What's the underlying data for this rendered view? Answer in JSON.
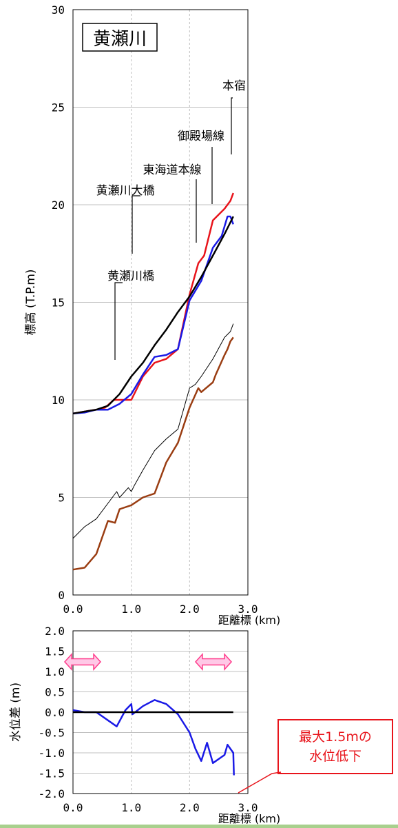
{
  "colors": {
    "red": "#e8141b",
    "blue": "#1a1ae6",
    "black": "#000000",
    "brown": "#9a3d12",
    "grid": "#c0c0c0",
    "callout": "#e8141b",
    "arrow_fill": "#ffc8e6",
    "arrow_stroke": "#ff3d8c",
    "bottom_strip": "#a8d08d"
  },
  "chart_data": [
    {
      "type": "line",
      "title": "黄瀬川",
      "ylabel": "標高 (T.P.m)",
      "xlabel": "距離標 (km)",
      "xlim": [
        0,
        3
      ],
      "ylim": [
        0,
        30
      ],
      "xticks": [
        "0.0",
        "1.0",
        "2.0",
        "3.0"
      ],
      "yticks": [
        "0",
        "5",
        "10",
        "15",
        "20",
        "25",
        "30"
      ],
      "grid": true,
      "series": [
        {
          "color": "red",
          "x": [
            0,
            0.2,
            0.4,
            0.55,
            0.7,
            0.8,
            1.0,
            1.2,
            1.4,
            1.6,
            1.8,
            2.0,
            2.15,
            2.25,
            2.4,
            2.6,
            2.65,
            2.7,
            2.75
          ],
          "y": [
            9.3,
            9.4,
            9.5,
            9.6,
            10.0,
            10.0,
            10.0,
            11.2,
            11.9,
            12.1,
            12.6,
            15.4,
            17.0,
            17.4,
            19.2,
            19.8,
            20.0,
            20.2,
            20.6
          ]
        },
        {
          "color": "blue",
          "x": [
            0,
            0.2,
            0.4,
            0.6,
            0.8,
            1.0,
            1.2,
            1.4,
            1.6,
            1.8,
            2.0,
            2.2,
            2.4,
            2.55,
            2.65,
            2.7,
            2.75
          ],
          "y": [
            9.3,
            9.35,
            9.5,
            9.5,
            9.8,
            10.3,
            11.3,
            12.2,
            12.3,
            12.6,
            15.1,
            16.1,
            17.8,
            18.4,
            19.4,
            19.4,
            19.0
          ]
        },
        {
          "color": "black",
          "x": [
            0,
            0.2,
            0.4,
            0.6,
            0.8,
            1.0,
            1.2,
            1.4,
            1.6,
            1.8,
            2.0,
            2.2,
            2.4,
            2.6,
            2.7,
            2.75
          ],
          "y": [
            9.3,
            9.4,
            9.5,
            9.7,
            10.3,
            11.2,
            11.9,
            12.8,
            13.6,
            14.5,
            15.3,
            16.3,
            17.4,
            18.5,
            19.1,
            19.4
          ]
        },
        {
          "color": "black_thin",
          "x": [
            0,
            0.2,
            0.4,
            0.6,
            0.75,
            0.8,
            0.95,
            1.0,
            1.05,
            1.2,
            1.4,
            1.6,
            1.8,
            2.0,
            2.1,
            2.2,
            2.4,
            2.6,
            2.7,
            2.75
          ],
          "y": [
            2.9,
            3.5,
            3.9,
            4.7,
            5.3,
            5.0,
            5.5,
            5.3,
            5.6,
            6.4,
            7.4,
            8.0,
            8.5,
            10.6,
            10.8,
            11.2,
            12.1,
            13.2,
            13.5,
            13.9
          ]
        },
        {
          "color": "brown",
          "x": [
            0,
            0.2,
            0.4,
            0.6,
            0.72,
            0.8,
            1.0,
            1.2,
            1.4,
            1.6,
            1.8,
            2.0,
            2.15,
            2.2,
            2.4,
            2.45,
            2.6,
            2.65,
            2.7,
            2.75
          ],
          "y": [
            1.3,
            1.4,
            2.1,
            3.8,
            3.7,
            4.4,
            4.6,
            5.0,
            5.2,
            6.8,
            7.8,
            9.6,
            10.6,
            10.4,
            10.9,
            11.3,
            12.3,
            12.6,
            13.0,
            13.2
          ]
        }
      ],
      "annotations": [
        {
          "text": "本宿",
          "x": 2.7
        },
        {
          "text": "御殿場線",
          "x": 2.4
        },
        {
          "text": "東海道本線",
          "x": 2.15
        },
        {
          "text": "黄瀬川大橋",
          "x": 1.05
        },
        {
          "text": "黄瀬川橋",
          "x": 0.75
        }
      ]
    },
    {
      "type": "line",
      "ylabel": "水位差 (m)",
      "xlabel": "距離標 (km)",
      "xlim": [
        0,
        3
      ],
      "ylim": [
        -2,
        2
      ],
      "xticks": [
        "0.0",
        "1.0",
        "2.0",
        "3.0"
      ],
      "yticks": [
        "2.0",
        "1.5",
        "1.0",
        "0.5",
        "0.0",
        "-0.5",
        "-1.0",
        "-1.5",
        "-2.0"
      ],
      "grid": true,
      "series": [
        {
          "color": "blue",
          "x": [
            0,
            0.2,
            0.4,
            0.6,
            0.75,
            0.9,
            1.0,
            1.02,
            1.2,
            1.4,
            1.6,
            1.8,
            2.0,
            2.1,
            2.2,
            2.3,
            2.4,
            2.6,
            2.65,
            2.7,
            2.75,
            2.76
          ],
          "y": [
            0.05,
            0.0,
            0.0,
            -0.2,
            -0.35,
            0.05,
            0.2,
            -0.05,
            0.15,
            0.3,
            0.2,
            -0.05,
            -0.5,
            -0.9,
            -1.2,
            -0.75,
            -1.25,
            -1.05,
            -0.8,
            -0.9,
            -1.0,
            -1.55
          ]
        },
        {
          "color": "black",
          "x": [
            0,
            2.75
          ],
          "y": [
            0,
            0
          ]
        }
      ],
      "callout": "最大1.5mの\n水位低下"
    }
  ]
}
